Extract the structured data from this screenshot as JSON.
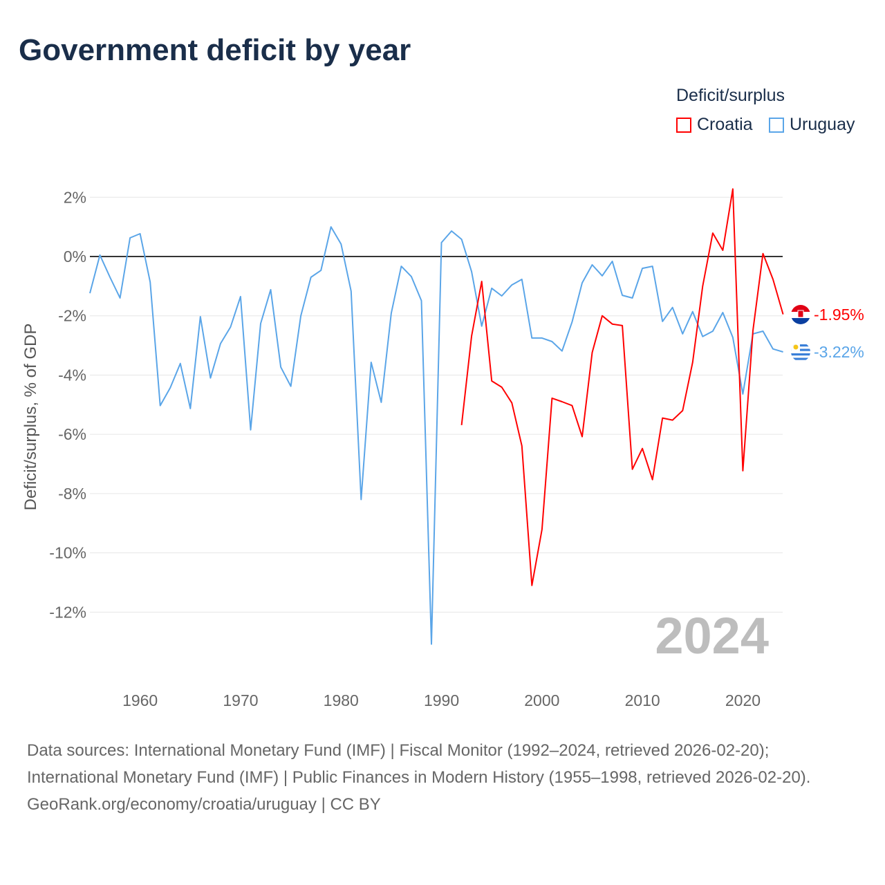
{
  "title": "Government deficit by year",
  "legend": {
    "title": "Deficit/surplus",
    "items": [
      {
        "name": "Croatia",
        "color": "#ff0000"
      },
      {
        "name": "Uruguay",
        "color": "#5aa5e8"
      }
    ]
  },
  "watermark_year": "2024",
  "end_labels": {
    "croatia": "-1.95%",
    "uruguay": "-3.22%"
  },
  "footer": {
    "sources": "Data sources: International Monetary Fund (IMF) | Fiscal Monitor (1992–2024, retrieved 2026-02-20); International Monetary Fund (IMF) | Public Finances in Modern History (1955–1998, retrieved 2026-02-20).",
    "credit": "GeoRank.org/economy/croatia/uruguay | CC BY"
  },
  "chart_data": {
    "type": "line",
    "title": "Government deficit by year",
    "xlabel": "",
    "ylabel": "Deficit/surplus, % of GDP",
    "xlim": [
      1955,
      2024
    ],
    "ylim": [
      -13.6,
      2.6
    ],
    "x_ticks": [
      1960,
      1970,
      1980,
      1990,
      2000,
      2010,
      2020
    ],
    "y_ticks": [
      2,
      0,
      -2,
      -4,
      -6,
      -8,
      -10,
      -12
    ],
    "y_tick_labels": [
      "2%",
      "0%",
      "-2%",
      "-4%",
      "-6%",
      "-8%",
      "-10%",
      "-12%"
    ],
    "grid": true,
    "legend_position": "top-right",
    "series": [
      {
        "name": "Uruguay",
        "color": "#5aa5e8",
        "start_year": 1955,
        "values": [
          -1.24,
          0.05,
          -0.7,
          -1.4,
          0.63,
          0.77,
          -0.86,
          -5.03,
          -4.43,
          -3.61,
          -5.13,
          -2.03,
          -4.1,
          -2.94,
          -2.38,
          -1.35,
          -5.85,
          -2.26,
          -1.12,
          -3.73,
          -4.38,
          -2.0,
          -0.7,
          -0.47,
          1.0,
          0.42,
          -1.17,
          -8.2,
          -3.57,
          -4.92,
          -1.91,
          -0.33,
          -0.68,
          -1.49,
          -13.08,
          0.47,
          0.86,
          0.58,
          -0.51,
          -2.35,
          -1.07,
          -1.33,
          -0.96,
          -0.77,
          -2.75,
          -2.75,
          -2.87,
          -3.19,
          -2.21,
          -0.89,
          -0.28,
          -0.65,
          -0.16,
          -1.31,
          -1.4,
          -0.4,
          -0.33,
          -2.19,
          -1.72,
          -2.61,
          -1.86,
          -2.7,
          -2.52,
          -1.89,
          -2.73,
          -4.64,
          -2.61,
          -2.52,
          -3.12,
          -3.22
        ]
      },
      {
        "name": "Croatia",
        "color": "#ff0000",
        "start_year": 1992,
        "values": [
          -5.69,
          -2.68,
          -0.84,
          -4.2,
          -4.41,
          -4.94,
          -6.39,
          -11.1,
          -9.21,
          -4.78,
          -4.9,
          -5.03,
          -6.08,
          -3.24,
          -2.0,
          -2.28,
          -2.33,
          -7.18,
          -6.48,
          -7.53,
          -5.45,
          -5.52,
          -5.2,
          -3.57,
          -1.0,
          0.79,
          0.21,
          2.28,
          -7.23,
          -2.5,
          0.1,
          -0.77,
          -1.95
        ]
      }
    ]
  }
}
